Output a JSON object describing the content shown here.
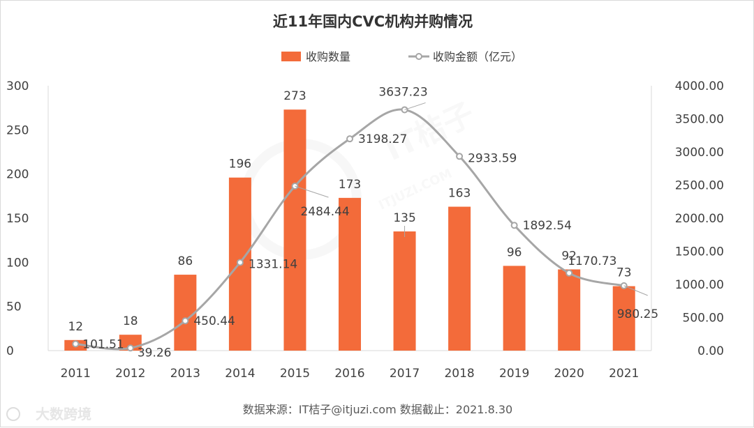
{
  "source_note": "数据来源：IT桔子@itjuzi.com  数据截止：2021.8.30",
  "watermarks": {
    "center": "IT桔子",
    "center_sub": "ITJUZI.COM",
    "corner": "大数跨境"
  },
  "colors": {
    "bar": "#f36b3a",
    "line": "#a6a6a6",
    "axis": "#d9d9d9",
    "text": "#404040"
  },
  "chart_data": {
    "type": "bar",
    "title": "近11年国内CVC机构并购情况",
    "categories": [
      "2011",
      "2012",
      "2013",
      "2014",
      "2015",
      "2016",
      "2017",
      "2018",
      "2019",
      "2020",
      "2021"
    ],
    "series": [
      {
        "name": "收购数量",
        "type": "bar",
        "axis": "left",
        "values": [
          12,
          18,
          86,
          196,
          273,
          173,
          135,
          163,
          96,
          92,
          73
        ]
      },
      {
        "name": "收购金额（亿元）",
        "type": "line",
        "axis": "right",
        "smooth": true,
        "values": [
          101.51,
          39.26,
          450.44,
          1331.14,
          2484.44,
          3198.27,
          3637.23,
          2933.59,
          1892.54,
          1170.73,
          980.25
        ]
      }
    ],
    "y_left": {
      "range": [
        0,
        300
      ],
      "ticks": [
        "0",
        "50",
        "100",
        "150",
        "200",
        "250",
        "300"
      ]
    },
    "y_right": {
      "range": [
        0,
        4000
      ],
      "ticks": [
        "0.00",
        "500.00",
        "1000.00",
        "1500.00",
        "2000.00",
        "2500.00",
        "3000.00",
        "3500.00",
        "4000.00"
      ]
    },
    "bar_labels": [
      "12",
      "18",
      "86",
      "196",
      "273",
      "173",
      "135",
      "163",
      "96",
      "92",
      "73"
    ],
    "line_labels": [
      "101.51",
      "39.26",
      "450.44",
      "1331.14",
      "2484.44",
      "3198.27",
      "3637.23",
      "2933.59",
      "1892.54",
      "1170.73",
      "980.25"
    ],
    "legend_position": "top-center",
    "grid": false
  }
}
